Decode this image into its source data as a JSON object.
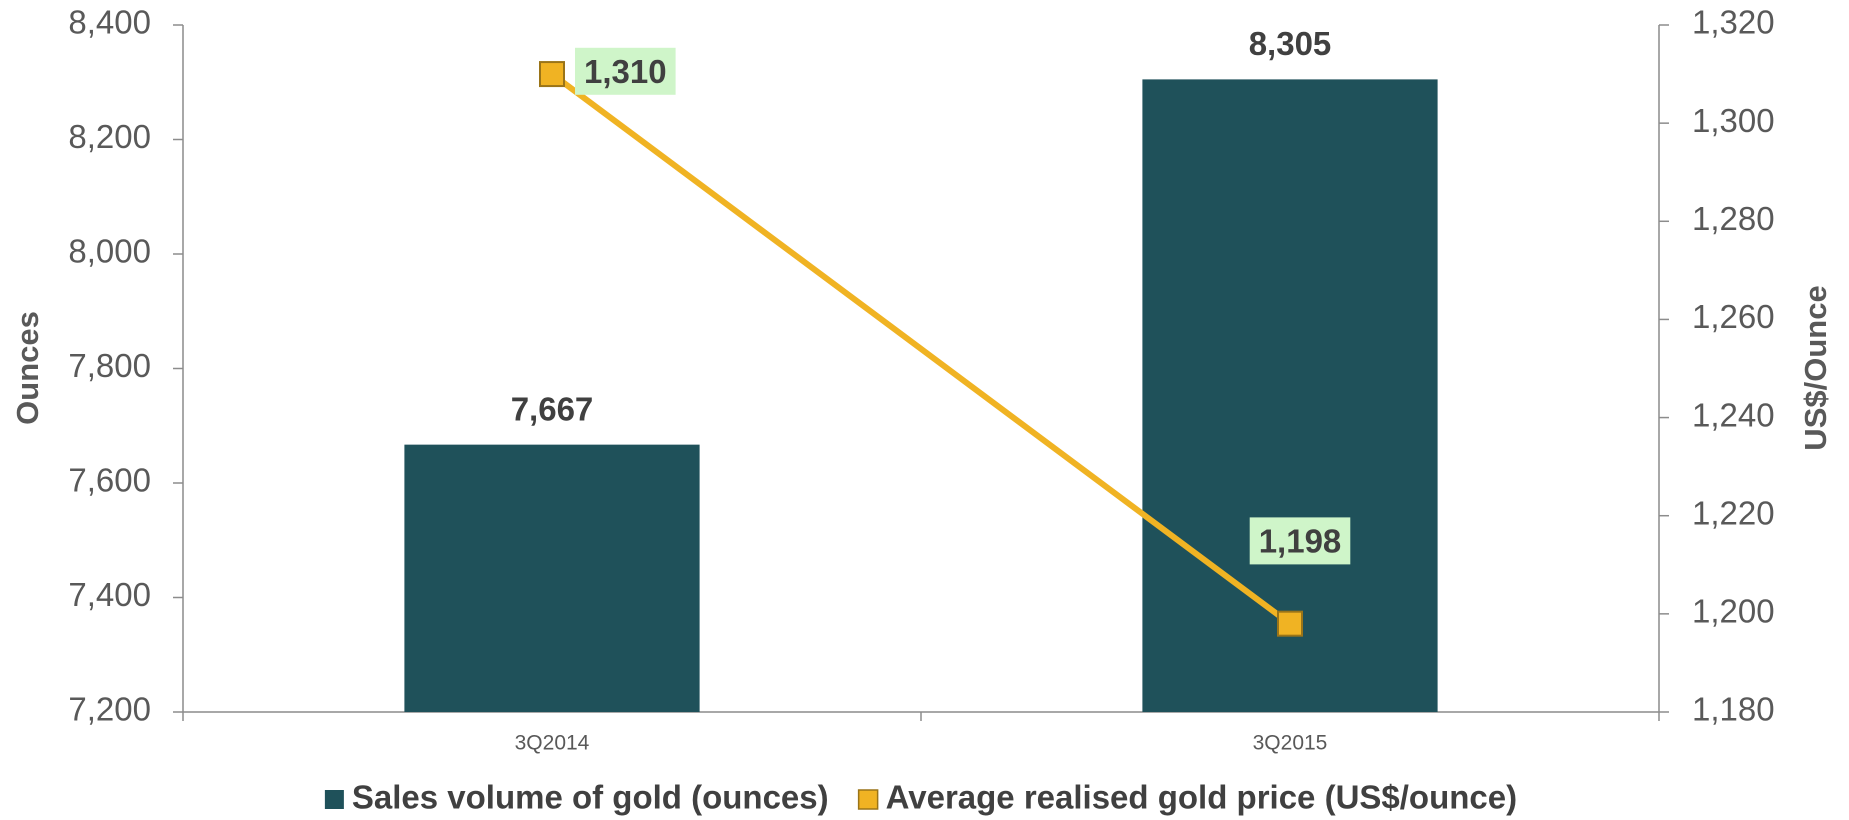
{
  "chart_data": {
    "type": "bar",
    "categories": [
      "3Q2014",
      "3Q2015"
    ],
    "series": [
      {
        "name": "Sales volume of gold (ounces)",
        "type": "bar",
        "color": "#1f515a",
        "values": [
          7667,
          8305
        ],
        "value_labels": [
          "7,667",
          "8,305"
        ]
      },
      {
        "name": "Average realised gold price (US$/ounce)",
        "type": "line",
        "axis": "y2",
        "color": "#f0b323",
        "values": [
          1310,
          1198
        ],
        "value_labels": [
          "1,310",
          "1,198"
        ]
      }
    ],
    "y_label": "Ounces",
    "y2_label": "US$/Ounce",
    "ylim": [
      7200,
      8400
    ],
    "yticks": [
      {
        "value": 7200,
        "label": "7,200"
      },
      {
        "value": 7400,
        "label": "7,400"
      },
      {
        "value": 7600,
        "label": "7,600"
      },
      {
        "value": 7800,
        "label": "7,800"
      },
      {
        "value": 8000,
        "label": "8,000"
      },
      {
        "value": 8200,
        "label": "8,200"
      },
      {
        "value": 8400,
        "label": "8,400"
      }
    ],
    "y2lim": [
      1180,
      1320
    ],
    "y2ticks": [
      {
        "value": 1180,
        "label": "1,180"
      },
      {
        "value": 1200,
        "label": "1,200"
      },
      {
        "value": 1220,
        "label": "1,220"
      },
      {
        "value": 1240,
        "label": "1,240"
      },
      {
        "value": 1260,
        "label": "1,260"
      },
      {
        "value": 1280,
        "label": "1,280"
      },
      {
        "value": 1300,
        "label": "1,300"
      },
      {
        "value": 1320,
        "label": "1,320"
      }
    ],
    "legend": "bottom",
    "grid": false
  }
}
